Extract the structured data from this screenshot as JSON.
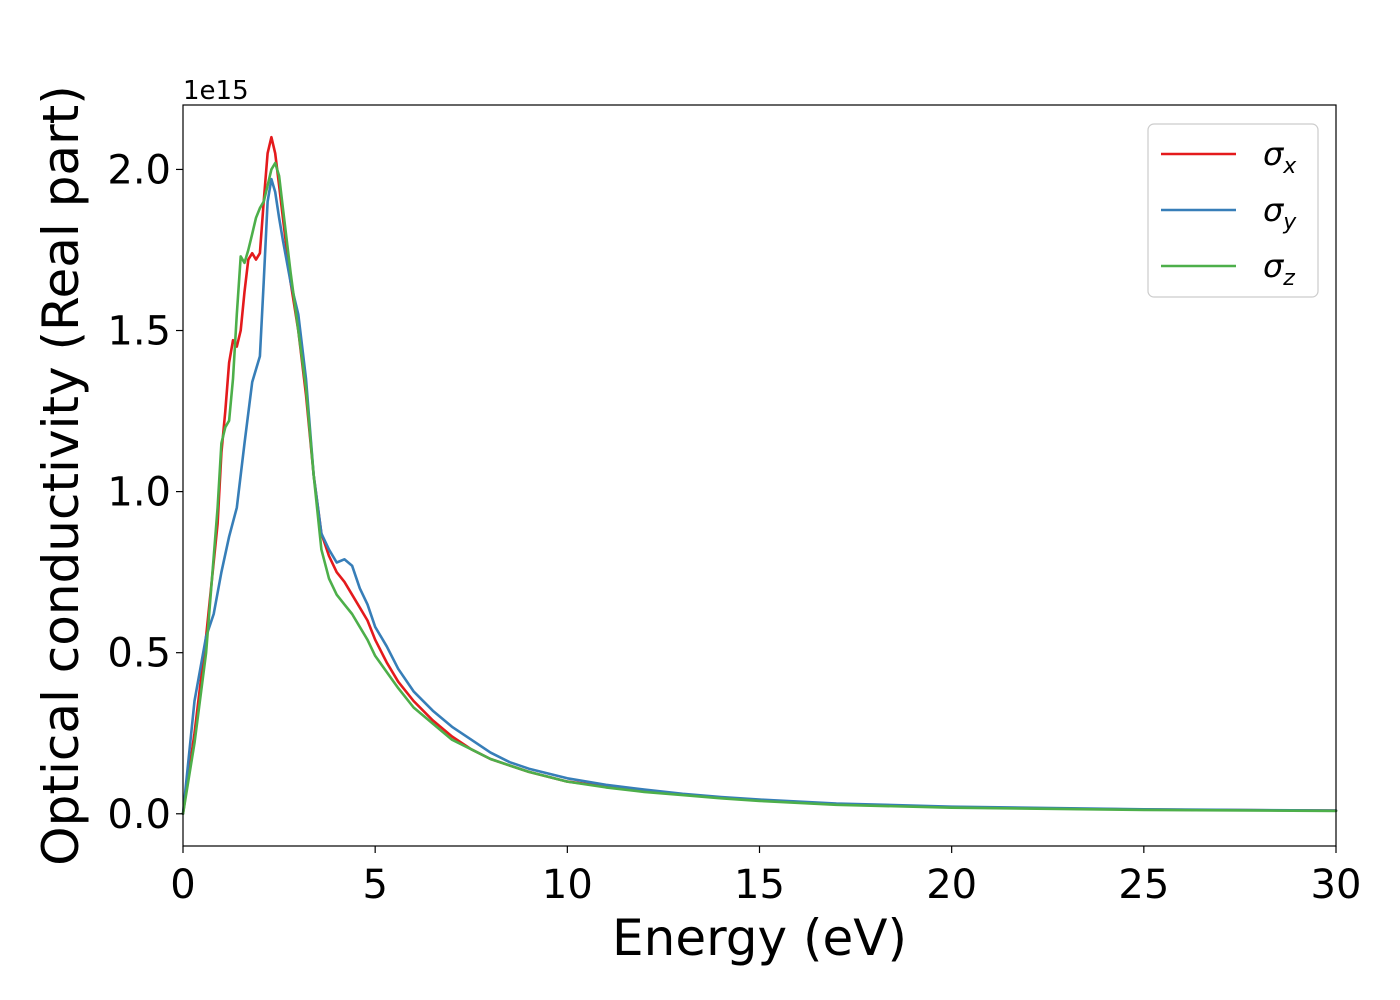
{
  "chart_data": {
    "type": "line",
    "xlabel": "Energy (eV)",
    "ylabel": "Optical conductivity (Real part)",
    "y_offset_text": "1e15",
    "xlim": [
      0,
      30
    ],
    "ylim": [
      -0.1,
      2.2
    ],
    "x_ticks": [
      0,
      5,
      10,
      15,
      20,
      25,
      30
    ],
    "x_tick_labels": [
      "0",
      "5",
      "10",
      "15",
      "20",
      "25",
      "30"
    ],
    "y_ticks": [
      0.0,
      0.5,
      1.0,
      1.5,
      2.0
    ],
    "y_tick_labels": [
      "0.0",
      "0.5",
      "1.0",
      "1.5",
      "2.0"
    ],
    "grid": false,
    "legend_position": "top-right",
    "series": [
      {
        "name": "σx",
        "legend_base": "σ",
        "legend_sub": "x",
        "color": "#e41a1c",
        "x": [
          0,
          0.3,
          0.6,
          0.9,
          1.0,
          1.1,
          1.2,
          1.3,
          1.4,
          1.5,
          1.6,
          1.7,
          1.8,
          1.9,
          2.0,
          2.1,
          2.2,
          2.3,
          2.4,
          2.5,
          2.6,
          2.8,
          3.0,
          3.2,
          3.4,
          3.6,
          3.8,
          4.0,
          4.2,
          4.4,
          4.6,
          4.8,
          5.0,
          5.3,
          5.6,
          6.0,
          6.5,
          7.0,
          7.5,
          8.0,
          8.5,
          9.0,
          10.0,
          11.0,
          12.0,
          13.0,
          14.0,
          15.0,
          17.0,
          20.0,
          25.0,
          30.0
        ],
        "y": [
          0.0,
          0.25,
          0.55,
          0.9,
          1.12,
          1.25,
          1.4,
          1.47,
          1.45,
          1.5,
          1.62,
          1.72,
          1.74,
          1.72,
          1.74,
          1.9,
          2.05,
          2.1,
          2.05,
          1.95,
          1.85,
          1.65,
          1.5,
          1.3,
          1.05,
          0.87,
          0.8,
          0.75,
          0.72,
          0.68,
          0.64,
          0.6,
          0.54,
          0.47,
          0.41,
          0.35,
          0.29,
          0.24,
          0.2,
          0.17,
          0.15,
          0.13,
          0.1,
          0.085,
          0.07,
          0.06,
          0.05,
          0.042,
          0.03,
          0.02,
          0.013,
          0.01
        ]
      },
      {
        "name": "σy",
        "legend_base": "σ",
        "legend_sub": "y",
        "color": "#377eb8",
        "x": [
          0,
          0.3,
          0.6,
          0.8,
          1.0,
          1.2,
          1.4,
          1.6,
          1.8,
          2.0,
          2.1,
          2.2,
          2.3,
          2.4,
          2.5,
          2.6,
          2.8,
          3.0,
          3.2,
          3.4,
          3.6,
          3.8,
          4.0,
          4.2,
          4.4,
          4.6,
          4.8,
          5.0,
          5.3,
          5.6,
          6.0,
          6.5,
          7.0,
          7.5,
          8.0,
          8.5,
          9.0,
          10.0,
          11.0,
          12.0,
          13.0,
          14.0,
          15.0,
          17.0,
          20.0,
          25.0,
          30.0
        ],
        "y": [
          0.0,
          0.35,
          0.55,
          0.62,
          0.75,
          0.86,
          0.95,
          1.15,
          1.34,
          1.42,
          1.65,
          1.9,
          1.97,
          1.93,
          1.85,
          1.78,
          1.65,
          1.55,
          1.35,
          1.05,
          0.87,
          0.82,
          0.78,
          0.79,
          0.77,
          0.7,
          0.65,
          0.58,
          0.52,
          0.45,
          0.38,
          0.32,
          0.27,
          0.23,
          0.19,
          0.16,
          0.14,
          0.11,
          0.09,
          0.075,
          0.062,
          0.052,
          0.044,
          0.032,
          0.022,
          0.014,
          0.01
        ]
      },
      {
        "name": "σz",
        "legend_base": "σ",
        "legend_sub": "z",
        "color": "#4daf4a",
        "x": [
          0,
          0.3,
          0.6,
          0.9,
          1.0,
          1.1,
          1.2,
          1.3,
          1.4,
          1.5,
          1.6,
          1.7,
          1.8,
          1.9,
          2.0,
          2.1,
          2.2,
          2.3,
          2.4,
          2.5,
          2.6,
          2.8,
          3.0,
          3.2,
          3.4,
          3.6,
          3.8,
          4.0,
          4.2,
          4.4,
          4.6,
          4.8,
          5.0,
          5.3,
          5.6,
          6.0,
          6.5,
          7.0,
          7.5,
          8.0,
          8.5,
          9.0,
          10.0,
          11.0,
          12.0,
          13.0,
          14.0,
          15.0,
          17.0,
          20.0,
          25.0,
          30.0
        ],
        "y": [
          0.0,
          0.22,
          0.5,
          0.95,
          1.15,
          1.2,
          1.22,
          1.35,
          1.55,
          1.73,
          1.71,
          1.75,
          1.8,
          1.85,
          1.88,
          1.9,
          1.95,
          2.0,
          2.02,
          1.98,
          1.88,
          1.68,
          1.5,
          1.32,
          1.05,
          0.82,
          0.73,
          0.68,
          0.65,
          0.62,
          0.58,
          0.54,
          0.49,
          0.44,
          0.39,
          0.33,
          0.28,
          0.23,
          0.2,
          0.17,
          0.15,
          0.13,
          0.1,
          0.082,
          0.068,
          0.058,
          0.048,
          0.04,
          0.028,
          0.019,
          0.012,
          0.009
        ]
      }
    ]
  }
}
